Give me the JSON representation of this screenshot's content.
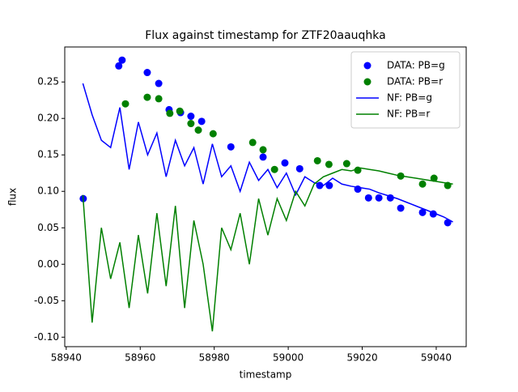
{
  "chart_data": {
    "type": "line",
    "title": "Flux against timestamp for ZTF20aauqhka",
    "x_label": "timestamp",
    "y_label": "flux",
    "xlim": [
      58939.6,
      59048.1
    ],
    "ylim": [
      -0.113,
      0.298
    ],
    "xticks": [
      58940,
      58960,
      58980,
      59000,
      59020,
      59040
    ],
    "yticks": [
      {
        "value": -0.1,
        "label": "-0.10"
      },
      -0.05,
      {
        "value": 0,
        "label": "0.00"
      },
      0.05,
      {
        "value": 0.1,
        "label": "0.10"
      },
      0.15,
      {
        "value": 0.2,
        "label": "0.20"
      },
      0.25
    ],
    "legend": "upper right",
    "series": [
      {
        "name": "DATA: PB=g",
        "color": "#0000ff",
        "kind": "marker",
        "x": [
          58944.6,
          58954.2,
          58955.1,
          58961.9,
          58965,
          58967.8,
          58970.9,
          58973.7,
          58976.6,
          58984.5,
          58993.2,
          58999.1,
          59003.1,
          59008.5,
          59011.1,
          59018.8,
          59021.7,
          59024.5,
          59027.6,
          59030.4,
          59036.3,
          59039.2,
          59043.1
        ],
        "values": [
          0.09,
          0.272,
          0.28,
          0.263,
          0.248,
          0.212,
          0.208,
          0.203,
          0.196,
          0.161,
          0.147,
          0.139,
          0.131,
          0.108,
          0.108,
          0.103,
          0.091,
          0.091,
          0.091,
          0.077,
          0.071,
          0.069,
          0.057
        ]
      },
      {
        "name": "DATA: PB=r",
        "color": "#008000",
        "kind": "marker",
        "x": [
          58956,
          58961.9,
          58965,
          58968,
          58970.7,
          58973.7,
          58975.7,
          58979.7,
          58990.4,
          58993.2,
          58996.3,
          59007.9,
          59011,
          59015.8,
          59018.8,
          59030.4,
          59036.3,
          59039.4,
          59043.1
        ],
        "values": [
          0.22,
          0.229,
          0.227,
          0.207,
          0.21,
          0.193,
          0.184,
          0.179,
          0.167,
          0.157,
          0.13,
          0.142,
          0.137,
          0.138,
          0.129,
          0.121,
          0.11,
          0.118,
          0.108
        ]
      },
      {
        "name": "NF: PB=g",
        "color": "#0000ff",
        "kind": "line",
        "x": [
          58944.5,
          58947,
          58949.5,
          58952,
          58954.5,
          58957,
          58959.5,
          58962,
          58964.5,
          58967,
          58969.5,
          58972,
          58974.5,
          58977,
          58979.5,
          58982,
          58984.5,
          58987,
          58989.5,
          58992,
          58994.5,
          58997,
          58999.5,
          59002,
          59004.5,
          59007,
          59009.5,
          59012,
          59014.5,
          59017,
          59019.5,
          59022,
          59024.5,
          59027,
          59029.5,
          59032,
          59034.5,
          59037,
          59039.5,
          59042,
          59044.5
        ],
        "values": [
          0.248,
          0.205,
          0.17,
          0.16,
          0.215,
          0.13,
          0.195,
          0.15,
          0.18,
          0.12,
          0.17,
          0.135,
          0.16,
          0.11,
          0.165,
          0.12,
          0.135,
          0.1,
          0.14,
          0.115,
          0.13,
          0.105,
          0.125,
          0.095,
          0.12,
          0.112,
          0.108,
          0.118,
          0.11,
          0.107,
          0.105,
          0.103,
          0.098,
          0.094,
          0.09,
          0.085,
          0.08,
          0.075,
          0.07,
          0.065,
          0.058
        ]
      },
      {
        "name": "NF: PB=r",
        "color": "#008000",
        "kind": "line",
        "x": [
          58944.5,
          58947,
          58949.5,
          58952,
          58954.5,
          58957,
          58959.5,
          58962,
          58964.5,
          58967,
          58969.5,
          58972,
          58974.5,
          58977,
          58979.5,
          58982,
          58984.5,
          58987,
          58989.5,
          58992,
          58994.5,
          58997,
          58999.5,
          59002,
          59004.5,
          59007,
          59009.5,
          59012,
          59014.5,
          59017,
          59019.5,
          59022,
          59024.5,
          59027,
          59029.5,
          59032,
          59034.5,
          59037,
          59039.5,
          59042,
          59044.5
        ],
        "values": [
          0.095,
          -0.08,
          0.05,
          -0.02,
          0.03,
          -0.06,
          0.04,
          -0.04,
          0.07,
          -0.03,
          0.08,
          -0.06,
          0.06,
          0.0,
          -0.092,
          0.05,
          0.02,
          0.07,
          0.0,
          0.09,
          0.04,
          0.09,
          0.06,
          0.1,
          0.08,
          0.11,
          0.12,
          0.125,
          0.13,
          0.128,
          0.132,
          0.13,
          0.128,
          0.125,
          0.122,
          0.12,
          0.118,
          0.116,
          0.114,
          0.112,
          0.11
        ]
      }
    ]
  }
}
